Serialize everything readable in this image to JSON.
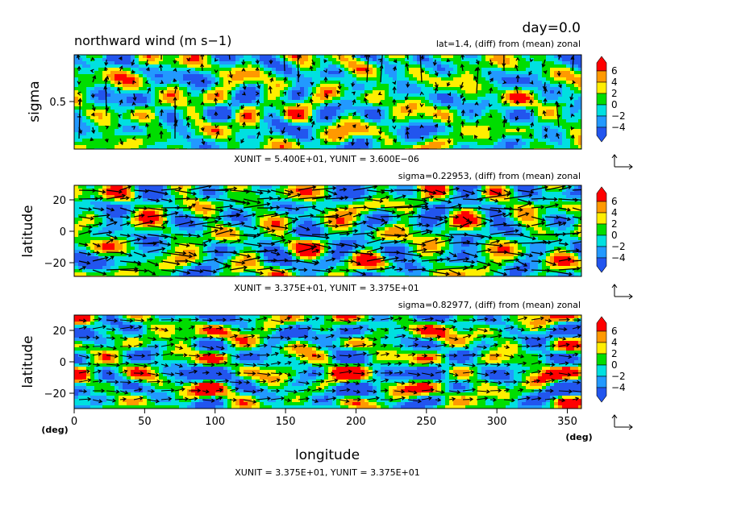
{
  "header": {
    "day_label": "day=0.0",
    "title": "northward wind (m s−1)"
  },
  "panels": [
    {
      "id": "sigma-section",
      "subtitle": "lat=1.4, (diff) from (mean) zonal",
      "ylabel": "sigma",
      "yticks": [
        "0.5"
      ],
      "unit_text": "XUNIT = 5.400E+01, YUNIT = 3.600E−06"
    },
    {
      "id": "upper-level",
      "subtitle": "sigma=0.22953, (diff) from (mean) zonal",
      "ylabel": "latitude",
      "yticks": [
        "20",
        "0",
        "−20"
      ],
      "unit_text": "XUNIT = 3.375E+01, YUNIT = 3.375E+01"
    },
    {
      "id": "lower-level",
      "subtitle": "sigma=0.82977, (diff) from (mean) zonal",
      "ylabel": "latitude",
      "yticks": [
        "20",
        "0",
        "−20"
      ],
      "unit_text": "XUNIT = 3.375E+01, YUNIT = 3.375E+01"
    }
  ],
  "xaxis": {
    "label": "longitude",
    "ticks": [
      "0",
      "50",
      "100",
      "150",
      "200",
      "250",
      "300",
      "350"
    ],
    "left_unit": "(deg)",
    "right_unit": "(deg)"
  },
  "legend": {
    "labels": [
      "6",
      "4",
      "2",
      "0",
      "−2",
      "−4"
    ],
    "colors": [
      "#ff0000",
      "#ff9900",
      "#ffee00",
      "#00dd00",
      "#00e0e0",
      "#2299ff",
      "#2255ee"
    ]
  },
  "chart_data": [
    {
      "type": "heatmap",
      "title": "northward wind (m s−1)",
      "subtitle": "lat=1.4, (diff) from (mean) zonal",
      "xlabel": "",
      "ylabel": "sigma",
      "xlim": [
        0,
        360
      ],
      "ylim": [
        0,
        1
      ],
      "color_levels": [
        -4,
        -2,
        0,
        2,
        4,
        6
      ],
      "vectors": true
    },
    {
      "type": "heatmap",
      "subtitle": "sigma=0.22953, (diff) from (mean) zonal",
      "xlabel": "",
      "ylabel": "latitude",
      "xlim": [
        0,
        360
      ],
      "ylim": [
        -30,
        30
      ],
      "color_levels": [
        -4,
        -2,
        0,
        2,
        4,
        6
      ],
      "vectors": true
    },
    {
      "type": "heatmap",
      "subtitle": "sigma=0.82977, (diff) from (mean) zonal",
      "xlabel": "longitude",
      "ylabel": "latitude",
      "xlim": [
        0,
        360
      ],
      "ylim": [
        -30,
        30
      ],
      "color_levels": [
        -4,
        -2,
        0,
        2,
        4,
        6
      ],
      "vectors": true
    }
  ]
}
